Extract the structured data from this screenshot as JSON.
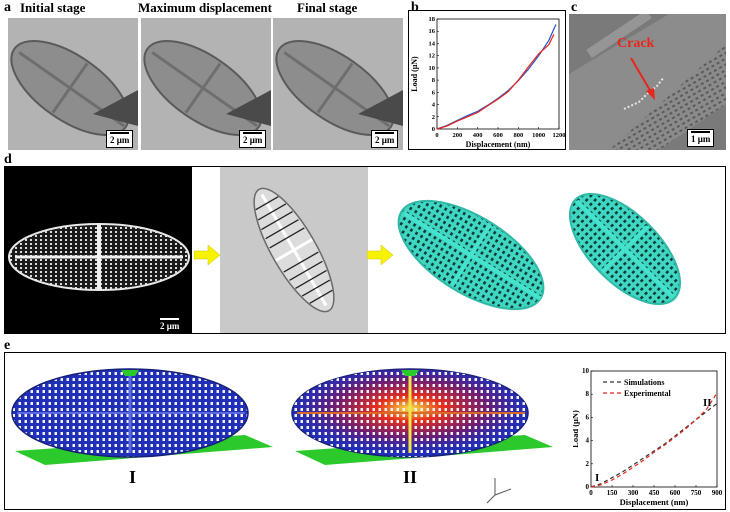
{
  "panels": {
    "a": {
      "label": "a",
      "stages": [
        {
          "title": "Initial stage",
          "scale": "2 μm"
        },
        {
          "title": "Maximum displacement",
          "scale": "2 μm"
        },
        {
          "title": "Final stage",
          "scale": "2 μm"
        }
      ]
    },
    "b": {
      "label": "b"
    },
    "c": {
      "label": "c",
      "annotation": "Crack",
      "scale": "1 μm"
    },
    "d": {
      "label": "d",
      "scale": "2 μm"
    },
    "e": {
      "label": "e",
      "stage_labels": [
        "I",
        "II"
      ]
    }
  },
  "colors": {
    "mesh_blue": "#1f2fb8",
    "plate_green": "#2cc92c",
    "tomo_teal": "#3fd6c2",
    "arrow_yellow": "#f6f200",
    "crack_red": "#e8261b",
    "sim_black": "#333333",
    "exp_red": "#e8261b",
    "line_blue": "#2a52c9"
  },
  "chart_data": [
    {
      "type": "line",
      "panel": "b",
      "xlabel": "Displacement (nm)",
      "ylabel": "Load (μN)",
      "xlim": [
        0,
        1200
      ],
      "ylim": [
        0,
        18
      ],
      "xticks": [
        0,
        200,
        400,
        600,
        800,
        1000,
        1200
      ],
      "yticks": [
        0,
        2,
        4,
        6,
        8,
        10,
        12,
        14,
        16,
        18
      ],
      "series": [
        {
          "color": "#2a52c9",
          "x": [
            0,
            100,
            200,
            300,
            400,
            500,
            600,
            700,
            800,
            900,
            1000,
            1100,
            1170
          ],
          "y": [
            0,
            0.6,
            1.4,
            2.2,
            2.9,
            3.9,
            5.0,
            6.3,
            7.9,
            9.8,
            12.0,
            14.5,
            17.1
          ]
        },
        {
          "color": "#e8261b",
          "x": [
            0,
            100,
            200,
            300,
            400,
            500,
            600,
            700,
            800,
            900,
            1000,
            1100,
            1150
          ],
          "y": [
            0,
            0.5,
            1.3,
            2.0,
            2.7,
            3.8,
            4.9,
            6.1,
            8.0,
            10.2,
            12.3,
            13.8,
            15.5
          ]
        }
      ]
    },
    {
      "type": "line",
      "panel": "e",
      "xlabel": "Displacement (nm)",
      "ylabel": "Load (μN)",
      "xlim": [
        0,
        900
      ],
      "ylim": [
        0,
        10
      ],
      "xticks": [
        0,
        150,
        300,
        450,
        600,
        750,
        900
      ],
      "yticks": [
        0,
        2,
        4,
        6,
        8,
        10
      ],
      "corner_labels": [
        "I",
        "II"
      ],
      "series": [
        {
          "name": "Simulations",
          "color": "#333333",
          "dash": "4,3",
          "x": [
            0,
            75,
            150,
            225,
            300,
            375,
            450,
            525,
            600,
            675,
            750,
            825,
            900
          ],
          "y": [
            0,
            0.3,
            0.8,
            1.3,
            1.9,
            2.5,
            3.1,
            3.7,
            4.4,
            5.1,
            5.8,
            6.5,
            7.2
          ]
        },
        {
          "name": "Experimental",
          "color": "#e8261b",
          "dash": "4,3",
          "x": [
            0,
            75,
            150,
            225,
            300,
            375,
            450,
            525,
            600,
            675,
            750,
            825,
            900
          ],
          "y": [
            0,
            0.2,
            0.6,
            1.1,
            1.7,
            2.3,
            3.0,
            3.6,
            4.3,
            5.0,
            5.8,
            6.7,
            8.1
          ]
        }
      ]
    }
  ]
}
